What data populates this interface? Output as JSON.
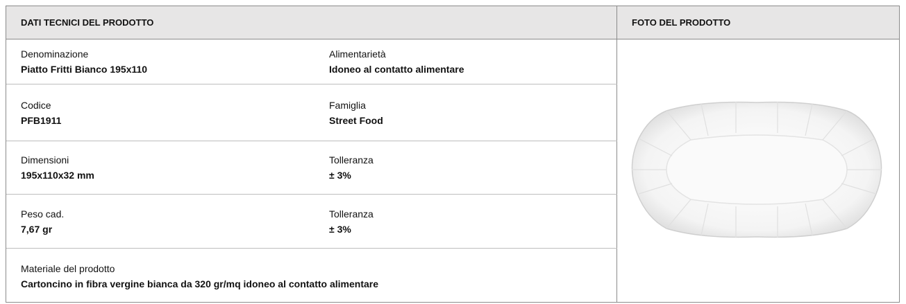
{
  "header": {
    "title": "DATI TECNICI DEL PRODOTTO",
    "photo_title": "FOTO DEL PRODOTTO"
  },
  "rows": [
    [
      {
        "label": "Denominazione",
        "value": "Piatto Fritti Bianco 195x110"
      },
      {
        "label": "Alimentarietà",
        "value": "Idoneo al contatto alimentare"
      }
    ],
    [
      {
        "label": "Codice",
        "value": "PFB1911"
      },
      {
        "label": "Famiglia",
        "value": "Street Food"
      }
    ],
    [
      {
        "label": "Dimensioni",
        "value": "195x110x32 mm"
      },
      {
        "label": "Tolleranza",
        "value": "± 3%"
      }
    ],
    [
      {
        "label": "Peso cad.",
        "value": "7,67 gr"
      },
      {
        "label": "Tolleranza",
        "value": "± 3%"
      }
    ]
  ],
  "material": {
    "label": "Materiale del prodotto",
    "value": "Cartoncino in fibra vergine bianca da 320 gr/mq idoneo al contatto alimentare"
  }
}
